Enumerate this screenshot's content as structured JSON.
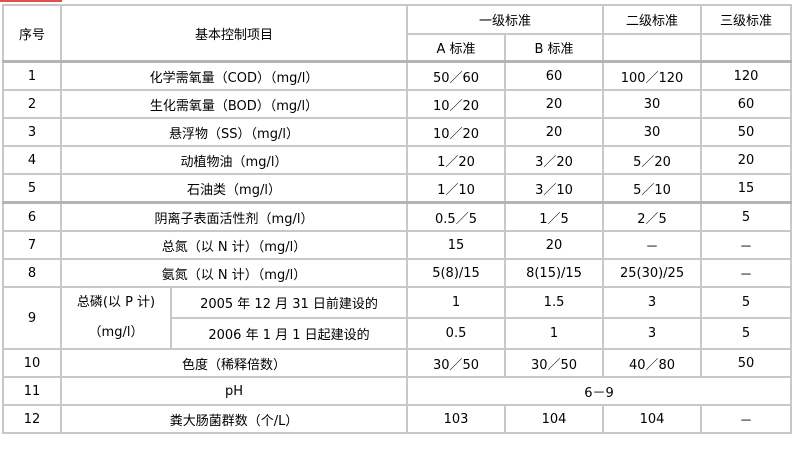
{
  "headers": {
    "seq": "序号",
    "item": "基本控制项目",
    "grade1": "一级标准",
    "grade2": "二级标准",
    "grade3": "三级标准",
    "grade1a": "A 标准",
    "grade1b": "B 标准"
  },
  "rows": [
    {
      "no": "1",
      "item": "化学需氧量（COD）（mg/l）",
      "a": "50／60",
      "b": "60",
      "g2": "100／120",
      "g3": "120"
    },
    {
      "no": "2",
      "item": "生化需氧量（BOD）（mg/l）",
      "a": "10／20",
      "b": "20",
      "g2": "30",
      "g3": "60"
    },
    {
      "no": "3",
      "item": "悬浮物（SS）（mg/l）",
      "a": "10／20",
      "b": "20",
      "g2": "30",
      "g3": "50"
    },
    {
      "no": "4",
      "item": "动植物油（mg/l）",
      "a": "1／20",
      "b": "3／20",
      "g2": "5／20",
      "g3": "20"
    },
    {
      "no": "5",
      "item": "石油类（mg/l）",
      "a": "1／10",
      "b": "3／10",
      "g2": "5／10",
      "g3": "15"
    },
    {
      "no": "6",
      "item": "阴离子表面活性剂（mg/l）",
      "a": "0.5／5",
      "b": "1／5",
      "g2": "2／5",
      "g3": "5"
    },
    {
      "no": "7",
      "item": "总氮（以 N 计）（mg/l）",
      "a": "15",
      "b": "20",
      "g2": "－",
      "g3": "－"
    },
    {
      "no": "8",
      "item": "氨氮（以 N 计）（mg/l）",
      "a": "5(8)/15",
      "b": "8(15)/15",
      "g2": "25(30)/25",
      "g3": "－"
    }
  ],
  "row9": {
    "no": "9",
    "item_line1": "总磷(以 P 计)",
    "item_line2": "（mg/l）",
    "sub1": {
      "label": "2005 年 12 月 31 日前建设的",
      "a": "1",
      "b": "1.5",
      "g2": "3",
      "g3": "5"
    },
    "sub2": {
      "label": "2006 年 1 月 1 日起建设的",
      "a": "0.5",
      "b": "1",
      "g2": "3",
      "g3": "5"
    }
  },
  "row10": {
    "no": "10",
    "item": "色度（稀释倍数）",
    "a": "30／50",
    "b": "30／50",
    "g2": "40／80",
    "g3": "50"
  },
  "row11": {
    "no": "11",
    "item": "pH",
    "value": "6－9"
  },
  "row12": {
    "no": "12",
    "item": "粪大肠菌群数（个/L）",
    "a": "103",
    "b": "104",
    "g2": "104",
    "g3": "－"
  }
}
